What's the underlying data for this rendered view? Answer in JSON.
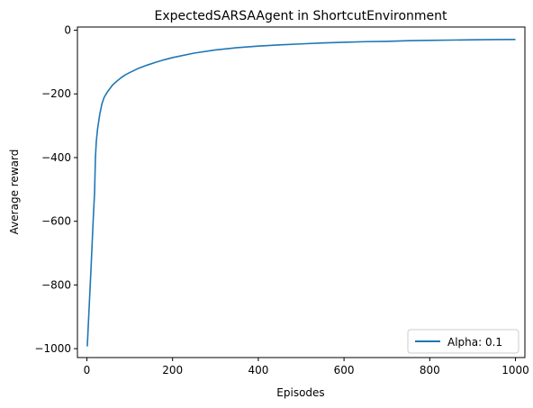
{
  "chart_data": {
    "type": "line",
    "title": "ExpectedSARSAAgent in ShortcutEnvironment",
    "xlabel": "Episodes",
    "ylabel": "Average reward",
    "xlim": [
      -22,
      1022
    ],
    "ylim": [
      -1028,
      10
    ],
    "xticks": [
      0,
      200,
      400,
      600,
      800,
      1000
    ],
    "xtick_labels": [
      "0",
      "200",
      "400",
      "600",
      "800",
      "1000"
    ],
    "yticks": [
      0,
      -200,
      -400,
      -600,
      -800,
      -1000
    ],
    "ytick_labels": [
      "0",
      "−200",
      "−400",
      "−600",
      "−800",
      "−1000"
    ],
    "grid": false,
    "legend_position": "lower right",
    "series": [
      {
        "name": "Alpha: 0.1",
        "color": "#1f77b4",
        "x": [
          1,
          5,
          10,
          15,
          18,
          20,
          22,
          25,
          30,
          35,
          40,
          45,
          50,
          60,
          70,
          80,
          90,
          100,
          120,
          140,
          160,
          180,
          200,
          250,
          300,
          350,
          400,
          450,
          500,
          550,
          600,
          650,
          700,
          750,
          800,
          850,
          900,
          950,
          1000
        ],
        "values": [
          -993,
          -880,
          -740,
          -590,
          -510,
          -400,
          -350,
          -310,
          -265,
          -232,
          -212,
          -200,
          -190,
          -172,
          -160,
          -149,
          -140,
          -133,
          -120,
          -110,
          -101,
          -93,
          -86,
          -72,
          -62,
          -55,
          -50,
          -46,
          -43,
          -40,
          -38,
          -36,
          -35,
          -33,
          -32,
          -31,
          -30,
          -29.5,
          -29
        ]
      }
    ]
  }
}
